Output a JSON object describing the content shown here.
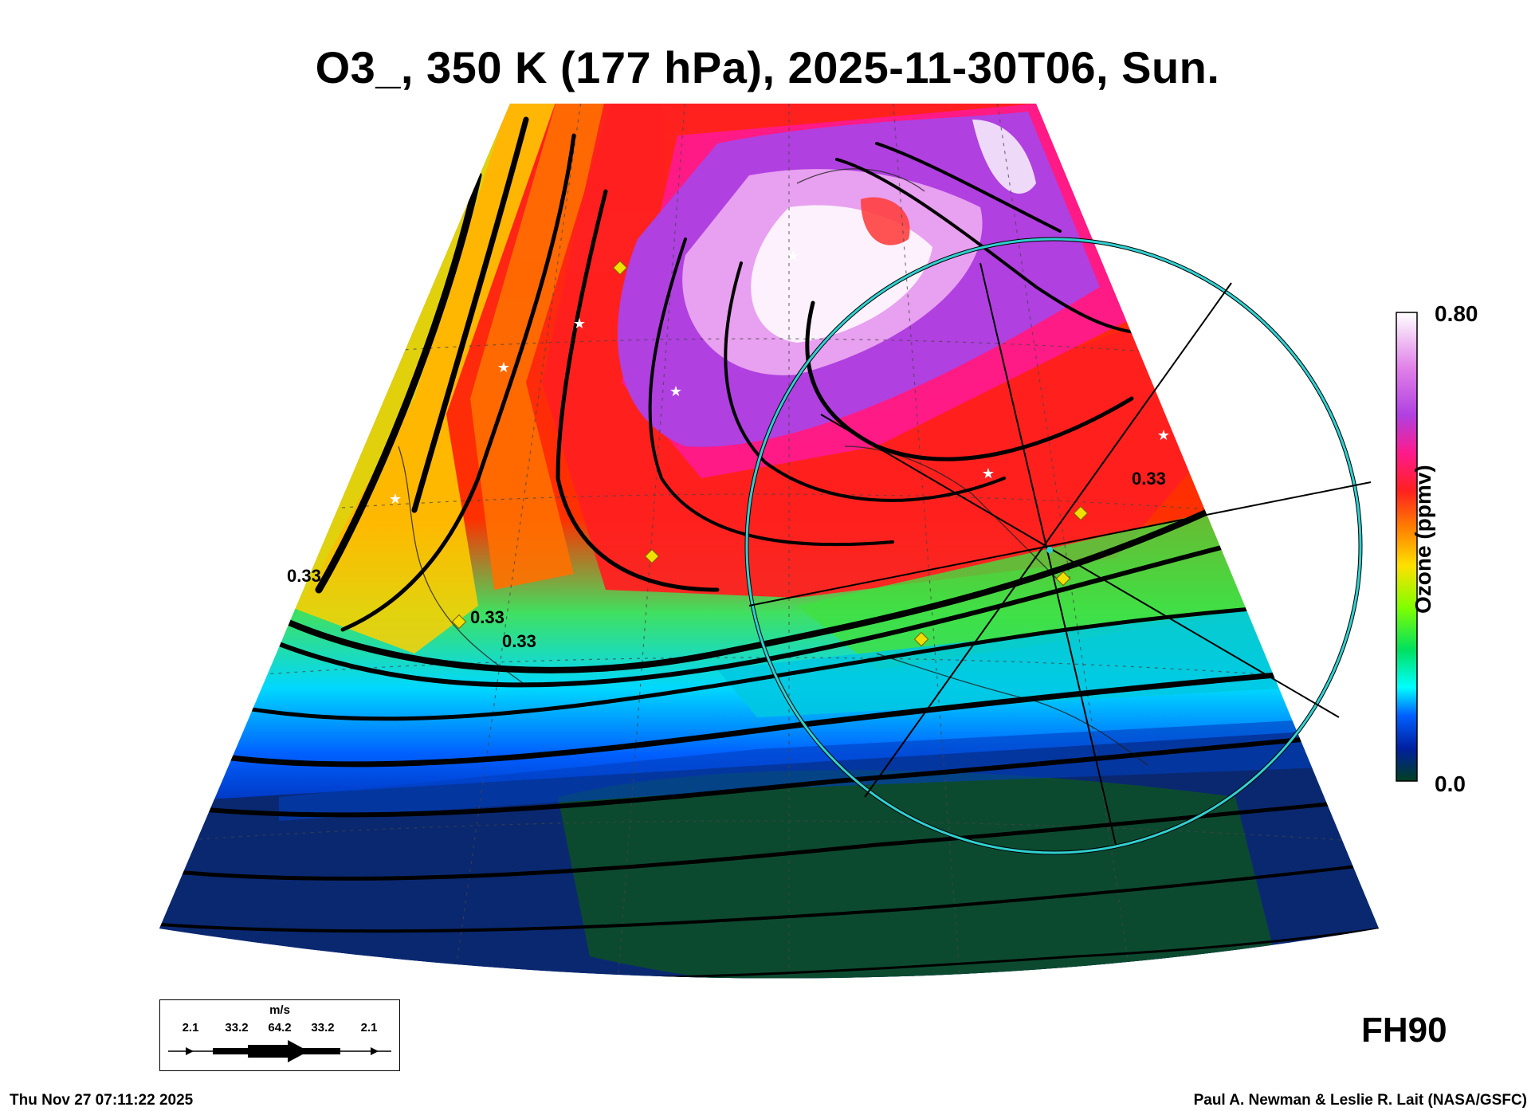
{
  "title": "O3_, 350 K (177 hPa), 2025-11-30T06, Sun.",
  "colorbar": {
    "title": "Ozone (ppmv)",
    "max_label": "0.80",
    "min_label": "0.0",
    "stops": [
      "#ffffff",
      "#e080e8",
      "#b040e0",
      "#ff1a8c",
      "#ff2020",
      "#ff8000",
      "#ffe000",
      "#80ff00",
      "#00e060",
      "#00ffff",
      "#0060ff",
      "#0020a0",
      "#004020"
    ]
  },
  "contour_labels": [
    "0.33",
    "0.33",
    "0.33",
    "0.33"
  ],
  "wind_legend": {
    "unit": "m/s",
    "values": [
      "2.1",
      "33.2",
      "64.2",
      "33.2",
      "2.1"
    ]
  },
  "forecast_hour": "FH90",
  "timestamp": "Thu Nov 27 07:11:22 2025",
  "credit": "Paul A. Newman & Leslie R. Lait (NASA/GSFC)",
  "colors": {
    "ring": "#30d0d0",
    "marker_diamond": "#f0e000",
    "marker_star": "#ffffff",
    "streamline": "#000000"
  }
}
